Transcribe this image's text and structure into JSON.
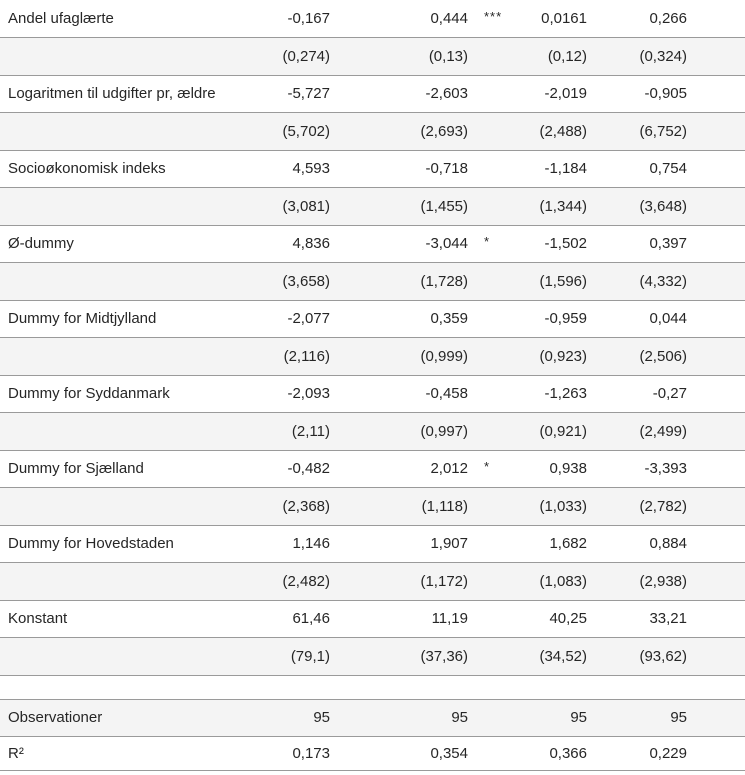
{
  "table": {
    "description_label": "regression-results-table",
    "colors": {
      "shaded_row_bg": "#f4f4f4",
      "border": "#9a9a9a",
      "text": "#262626",
      "page_bg": "#ffffff"
    },
    "rows": [
      {
        "type": "coef",
        "label": "Andel ufaglærte",
        "values": [
          "-0,167",
          "0,444",
          "0,0161",
          "0,266"
        ],
        "sig": "***"
      },
      {
        "type": "se",
        "label": "",
        "values": [
          "(0,274)",
          "(0,13)",
          "(0,12)",
          "(0,324)"
        ],
        "sig": ""
      },
      {
        "type": "coef",
        "label": "Logaritmen til udgifter pr, ældre",
        "values": [
          "-5,727",
          "-2,603",
          "-2,019",
          "-0,905"
        ],
        "sig": ""
      },
      {
        "type": "se",
        "label": "",
        "values": [
          "(5,702)",
          "(2,693)",
          "(2,488)",
          "(6,752)"
        ],
        "sig": ""
      },
      {
        "type": "coef",
        "label": "Socioøkonomisk indeks",
        "values": [
          "4,593",
          "-0,718",
          "-1,184",
          "0,754"
        ],
        "sig": ""
      },
      {
        "type": "se",
        "label": "",
        "values": [
          "(3,081)",
          "(1,455)",
          "(1,344)",
          "(3,648)"
        ],
        "sig": ""
      },
      {
        "type": "coef",
        "label": "Ø-dummy",
        "values": [
          "4,836",
          "-3,044",
          "-1,502",
          "0,397"
        ],
        "sig": "*"
      },
      {
        "type": "se",
        "label": "",
        "values": [
          "(3,658)",
          "(1,728)",
          "(1,596)",
          "(4,332)"
        ],
        "sig": ""
      },
      {
        "type": "coef",
        "label": "Dummy for Midtjylland",
        "values": [
          "-2,077",
          "0,359",
          "-0,959",
          "0,044"
        ],
        "sig": ""
      },
      {
        "type": "se",
        "label": "",
        "values": [
          "(2,116)",
          "(0,999)",
          "(0,923)",
          "(2,506)"
        ],
        "sig": ""
      },
      {
        "type": "coef",
        "label": "Dummy for Syddanmark",
        "values": [
          "-2,093",
          "-0,458",
          "-1,263",
          "-0,27"
        ],
        "sig": ""
      },
      {
        "type": "se",
        "label": "",
        "values": [
          "(2,11)",
          "(0,997)",
          "(0,921)",
          "(2,499)"
        ],
        "sig": ""
      },
      {
        "type": "coef",
        "label": "Dummy for Sjælland",
        "values": [
          "-0,482",
          "2,012",
          "0,938",
          "-3,393"
        ],
        "sig": "*"
      },
      {
        "type": "se",
        "label": "",
        "values": [
          "(2,368)",
          "(1,118)",
          "(1,033)",
          "(2,782)"
        ],
        "sig": ""
      },
      {
        "type": "coef",
        "label": "Dummy for Hovedstaden",
        "values": [
          "1,146",
          "1,907",
          "1,682",
          "0,884"
        ],
        "sig": ""
      },
      {
        "type": "se",
        "label": "",
        "values": [
          "(2,482)",
          "(1,172)",
          "(1,083)",
          "(2,938)"
        ],
        "sig": ""
      },
      {
        "type": "coef",
        "label": "Konstant",
        "values": [
          "61,46",
          "11,19",
          "40,25",
          "33,21"
        ],
        "sig": ""
      },
      {
        "type": "se",
        "label": "",
        "values": [
          "(79,1)",
          "(37,36)",
          "(34,52)",
          "(93,62)"
        ],
        "sig": ""
      },
      {
        "type": "spacer",
        "label": "",
        "values": [
          "",
          "",
          "",
          ""
        ],
        "sig": ""
      },
      {
        "type": "stat-shaded",
        "label": "Observationer",
        "values": [
          "95",
          "95",
          "95",
          "95"
        ],
        "sig": ""
      },
      {
        "type": "stat",
        "label": "R²",
        "values": [
          "0,173",
          "0,354",
          "0,366",
          "0,229"
        ],
        "sig": ""
      }
    ]
  }
}
